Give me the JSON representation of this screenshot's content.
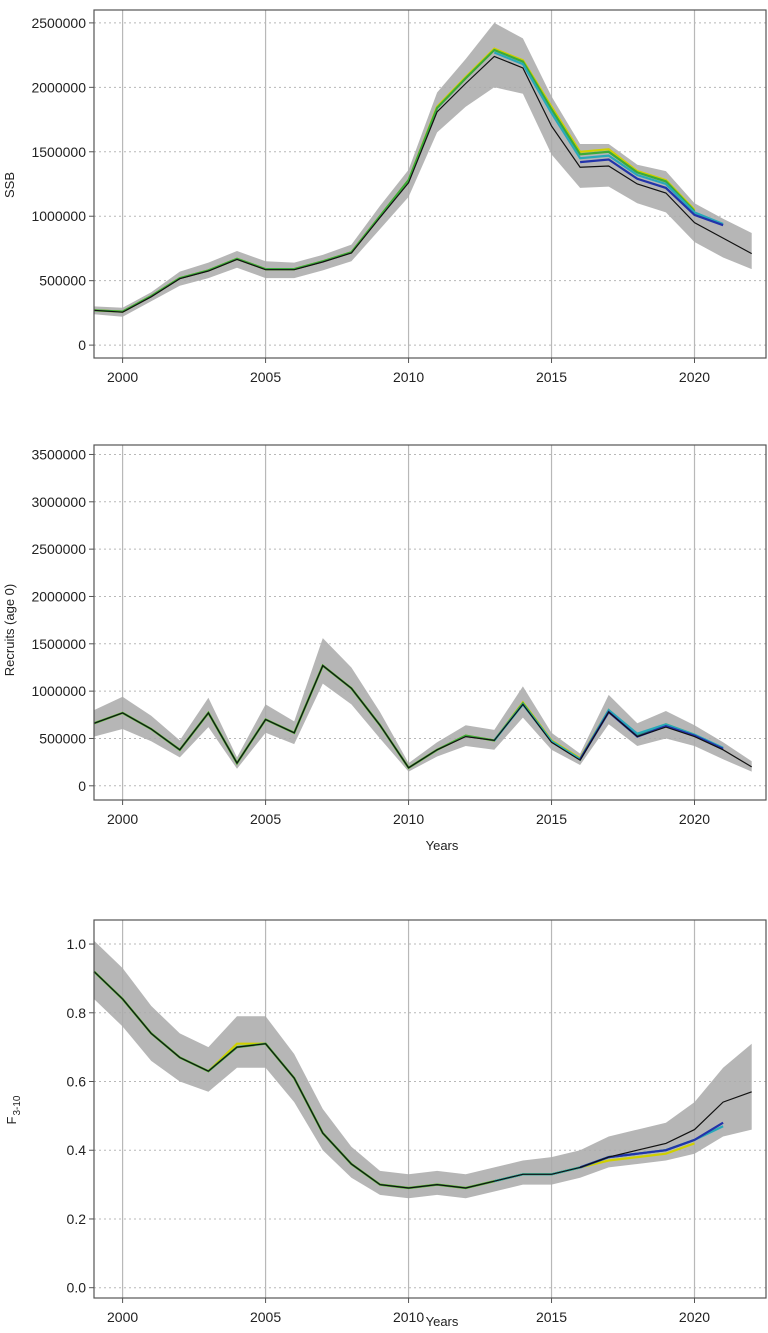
{
  "chart_data": [
    {
      "type": "line",
      "ylabel": "SSB",
      "xlabel": "",
      "xlim": [
        1999,
        2022.5
      ],
      "ylim": [
        -100000,
        2600000
      ],
      "x_ticks": [
        2000,
        2005,
        2010,
        2015,
        2020
      ],
      "y_ticks": [
        0,
        500000,
        1000000,
        1500000,
        2000000,
        2500000
      ],
      "grid": true,
      "confidence_band": {
        "x": [
          1999,
          2000,
          2001,
          2002,
          2003,
          2004,
          2005,
          2006,
          2007,
          2008,
          2009,
          2010,
          2011,
          2012,
          2013,
          2014,
          2015,
          2016,
          2017,
          2018,
          2019,
          2020,
          2021,
          2022
        ],
        "lower": [
          240000,
          220000,
          340000,
          460000,
          520000,
          600000,
          520000,
          520000,
          580000,
          650000,
          900000,
          1150000,
          1650000,
          1850000,
          2000000,
          1950000,
          1480000,
          1220000,
          1230000,
          1100000,
          1030000,
          800000,
          680000,
          590000
        ],
        "upper": [
          300000,
          290000,
          410000,
          570000,
          640000,
          730000,
          650000,
          640000,
          700000,
          780000,
          1080000,
          1360000,
          1960000,
          2220000,
          2500000,
          2380000,
          1930000,
          1560000,
          1560000,
          1400000,
          1350000,
          1100000,
          980000,
          870000
        ]
      },
      "series": [
        {
          "color": "#d0d000",
          "x": [
            1999,
            2000,
            2001,
            2002,
            2003,
            2004,
            2005,
            2006,
            2007,
            2008,
            2009,
            2010,
            2011,
            2012,
            2013,
            2014,
            2015,
            2016,
            2017,
            2018,
            2019,
            2020
          ],
          "values": [
            270000,
            260000,
            380000,
            520000,
            580000,
            670000,
            590000,
            590000,
            650000,
            720000,
            1000000,
            1280000,
            1850000,
            2080000,
            2300000,
            2210000,
            1850000,
            1500000,
            1520000,
            1350000,
            1280000,
            1050000
          ]
        },
        {
          "color": "#3aaa3a",
          "x": [
            1999,
            2000,
            2001,
            2002,
            2003,
            2004,
            2005,
            2006,
            2007,
            2008,
            2009,
            2010,
            2011,
            2012,
            2013,
            2014,
            2015,
            2016,
            2017,
            2018,
            2019,
            2020
          ],
          "values": [
            270000,
            260000,
            380000,
            520000,
            580000,
            670000,
            590000,
            590000,
            650000,
            720000,
            1000000,
            1280000,
            1840000,
            2070000,
            2290000,
            2200000,
            1830000,
            1480000,
            1500000,
            1340000,
            1270000,
            1040000
          ]
        },
        {
          "color": "#29a8b8",
          "x": [
            2013,
            2014,
            2015,
            2016,
            2017,
            2018,
            2019,
            2020,
            2021
          ],
          "values": [
            2270000,
            2180000,
            1800000,
            1450000,
            1470000,
            1320000,
            1250000,
            1030000,
            940000
          ]
        },
        {
          "color": "#2233aa",
          "x": [
            2016,
            2017,
            2018,
            2019,
            2020,
            2021
          ],
          "values": [
            1420000,
            1440000,
            1290000,
            1220000,
            1010000,
            930000
          ]
        },
        {
          "color": "#111111",
          "x": [
            1999,
            2000,
            2001,
            2002,
            2003,
            2004,
            2005,
            2006,
            2007,
            2008,
            2009,
            2010,
            2011,
            2012,
            2013,
            2014,
            2015,
            2016,
            2017,
            2018,
            2019,
            2020,
            2021,
            2022
          ],
          "values": [
            270000,
            255000,
            375000,
            515000,
            575000,
            665000,
            585000,
            585000,
            645000,
            715000,
            990000,
            1260000,
            1810000,
            2030000,
            2240000,
            2150000,
            1700000,
            1380000,
            1390000,
            1250000,
            1180000,
            950000,
            830000,
            710000
          ]
        }
      ]
    },
    {
      "type": "line",
      "ylabel": "Recruits (age 0)",
      "xlabel": "Years",
      "xlim": [
        1999,
        2022.5
      ],
      "ylim": [
        -150000,
        3600000
      ],
      "x_ticks": [
        2000,
        2005,
        2010,
        2015,
        2020
      ],
      "y_ticks": [
        0,
        500000,
        1000000,
        1500000,
        2000000,
        2500000,
        3000000,
        3500000
      ],
      "grid": true,
      "confidence_band": {
        "x": [
          1999,
          2000,
          2001,
          2002,
          2003,
          2004,
          2005,
          2006,
          2007,
          2008,
          2009,
          2010,
          2011,
          2012,
          2013,
          2014,
          2015,
          2016,
          2017,
          2018,
          2019,
          2020,
          2021,
          2022
        ],
        "lower": [
          520000,
          600000,
          470000,
          300000,
          620000,
          180000,
          560000,
          440000,
          1080000,
          860000,
          500000,
          150000,
          310000,
          420000,
          380000,
          720000,
          380000,
          220000,
          650000,
          420000,
          500000,
          420000,
          280000,
          150000
        ],
        "upper": [
          800000,
          940000,
          740000,
          480000,
          930000,
          300000,
          860000,
          680000,
          1560000,
          1250000,
          780000,
          240000,
          460000,
          640000,
          590000,
          1050000,
          560000,
          340000,
          960000,
          660000,
          790000,
          640000,
          460000,
          260000
        ]
      },
      "series": [
        {
          "color": "#d0d000",
          "x": [
            1999,
            2000,
            2001,
            2002,
            2003,
            2004,
            2005,
            2006,
            2007,
            2008,
            2009,
            2010,
            2011,
            2012,
            2013,
            2014,
            2015,
            2016,
            2017,
            2018,
            2019,
            2020
          ],
          "values": [
            660000,
            770000,
            600000,
            380000,
            770000,
            240000,
            700000,
            560000,
            1270000,
            1030000,
            640000,
            190000,
            380000,
            530000,
            480000,
            880000,
            480000,
            290000,
            800000,
            540000,
            650000,
            540000
          ]
        },
        {
          "color": "#3aaa3a",
          "x": [
            1999,
            2000,
            2001,
            2002,
            2003,
            2004,
            2005,
            2006,
            2007,
            2008,
            2009,
            2010,
            2011,
            2012,
            2013,
            2014,
            2015,
            2016,
            2017,
            2018,
            2019,
            2020
          ],
          "values": [
            660000,
            770000,
            600000,
            380000,
            770000,
            240000,
            700000,
            560000,
            1270000,
            1030000,
            640000,
            190000,
            380000,
            530000,
            480000,
            870000,
            470000,
            280000,
            790000,
            530000,
            640000,
            530000
          ]
        },
        {
          "color": "#29a8b8",
          "x": [
            2013,
            2014,
            2015,
            2016,
            2017,
            2018,
            2019,
            2020,
            2021
          ],
          "values": [
            480000,
            860000,
            470000,
            280000,
            800000,
            550000,
            650000,
            540000,
            400000
          ]
        },
        {
          "color": "#2233aa",
          "x": [
            2016,
            2017,
            2018,
            2019,
            2020,
            2021
          ],
          "values": [
            280000,
            780000,
            520000,
            630000,
            530000,
            390000
          ]
        },
        {
          "color": "#111111",
          "x": [
            1999,
            2000,
            2001,
            2002,
            2003,
            2004,
            2005,
            2006,
            2007,
            2008,
            2009,
            2010,
            2011,
            2012,
            2013,
            2014,
            2015,
            2016,
            2017,
            2018,
            2019,
            2020,
            2021,
            2022
          ],
          "values": [
            660000,
            770000,
            600000,
            380000,
            770000,
            240000,
            700000,
            560000,
            1270000,
            1030000,
            640000,
            190000,
            380000,
            520000,
            480000,
            860000,
            460000,
            270000,
            780000,
            520000,
            620000,
            520000,
            380000,
            200000
          ]
        }
      ]
    },
    {
      "type": "line",
      "ylabel": "F",
      "ylabel_sub": "3-10",
      "xlabel": "Years",
      "xlim": [
        1999,
        2022.5
      ],
      "ylim": [
        -0.03,
        1.07
      ],
      "x_ticks": [
        2000,
        2005,
        2010,
        2015,
        2020
      ],
      "y_ticks": [
        0.0,
        0.2,
        0.4,
        0.6,
        0.8,
        1.0
      ],
      "y_tick_labels": [
        "0.0",
        "0.2",
        "0.4",
        "0.6",
        "0.8",
        "1.0"
      ],
      "grid": true,
      "confidence_band": {
        "x": [
          1999,
          2000,
          2001,
          2002,
          2003,
          2004,
          2005,
          2006,
          2007,
          2008,
          2009,
          2010,
          2011,
          2012,
          2013,
          2014,
          2015,
          2016,
          2017,
          2018,
          2019,
          2020,
          2021,
          2022
        ],
        "lower": [
          0.84,
          0.76,
          0.66,
          0.6,
          0.57,
          0.64,
          0.64,
          0.54,
          0.4,
          0.32,
          0.27,
          0.26,
          0.27,
          0.26,
          0.28,
          0.3,
          0.3,
          0.32,
          0.35,
          0.36,
          0.37,
          0.39,
          0.44,
          0.46
        ],
        "upper": [
          1.01,
          0.93,
          0.82,
          0.74,
          0.7,
          0.79,
          0.79,
          0.68,
          0.52,
          0.41,
          0.34,
          0.33,
          0.34,
          0.33,
          0.35,
          0.37,
          0.38,
          0.4,
          0.44,
          0.46,
          0.48,
          0.54,
          0.64,
          0.71
        ]
      },
      "series": [
        {
          "color": "#d0d000",
          "x": [
            1999,
            2000,
            2001,
            2002,
            2003,
            2004,
            2005,
            2006,
            2007,
            2008,
            2009,
            2010,
            2011,
            2012,
            2013,
            2014,
            2015,
            2016,
            2017,
            2018,
            2019,
            2020
          ],
          "values": [
            0.92,
            0.84,
            0.74,
            0.67,
            0.63,
            0.71,
            0.71,
            0.61,
            0.45,
            0.36,
            0.3,
            0.29,
            0.3,
            0.29,
            0.31,
            0.33,
            0.33,
            0.35,
            0.37,
            0.38,
            0.39,
            0.42
          ]
        },
        {
          "color": "#3aaa3a",
          "x": [
            1999,
            2000,
            2001,
            2002,
            2003,
            2004,
            2005,
            2006,
            2007,
            2008,
            2009,
            2010,
            2011,
            2012,
            2013,
            2014,
            2015,
            2016,
            2017,
            2018,
            2019,
            2020
          ],
          "values": [
            0.92,
            0.84,
            0.74,
            0.67,
            0.63,
            0.7,
            0.71,
            0.61,
            0.45,
            0.36,
            0.3,
            0.29,
            0.3,
            0.29,
            0.31,
            0.33,
            0.33,
            0.35,
            0.38,
            0.39,
            0.4,
            0.43
          ]
        },
        {
          "color": "#29a8b8",
          "x": [
            2013,
            2014,
            2015,
            2016,
            2017,
            2018,
            2019,
            2020,
            2021
          ],
          "values": [
            0.31,
            0.33,
            0.33,
            0.35,
            0.38,
            0.39,
            0.4,
            0.43,
            0.47
          ]
        },
        {
          "color": "#2233aa",
          "x": [
            2016,
            2017,
            2018,
            2019,
            2020,
            2021
          ],
          "values": [
            0.35,
            0.38,
            0.39,
            0.4,
            0.43,
            0.48
          ]
        },
        {
          "color": "#111111",
          "x": [
            1999,
            2000,
            2001,
            2002,
            2003,
            2004,
            2005,
            2006,
            2007,
            2008,
            2009,
            2010,
            2011,
            2012,
            2013,
            2014,
            2015,
            2016,
            2017,
            2018,
            2019,
            2020,
            2021,
            2022
          ],
          "values": [
            0.92,
            0.84,
            0.74,
            0.67,
            0.63,
            0.7,
            0.71,
            0.61,
            0.45,
            0.36,
            0.3,
            0.29,
            0.3,
            0.29,
            0.31,
            0.33,
            0.33,
            0.35,
            0.38,
            0.4,
            0.42,
            0.46,
            0.54,
            0.57
          ]
        }
      ]
    }
  ]
}
